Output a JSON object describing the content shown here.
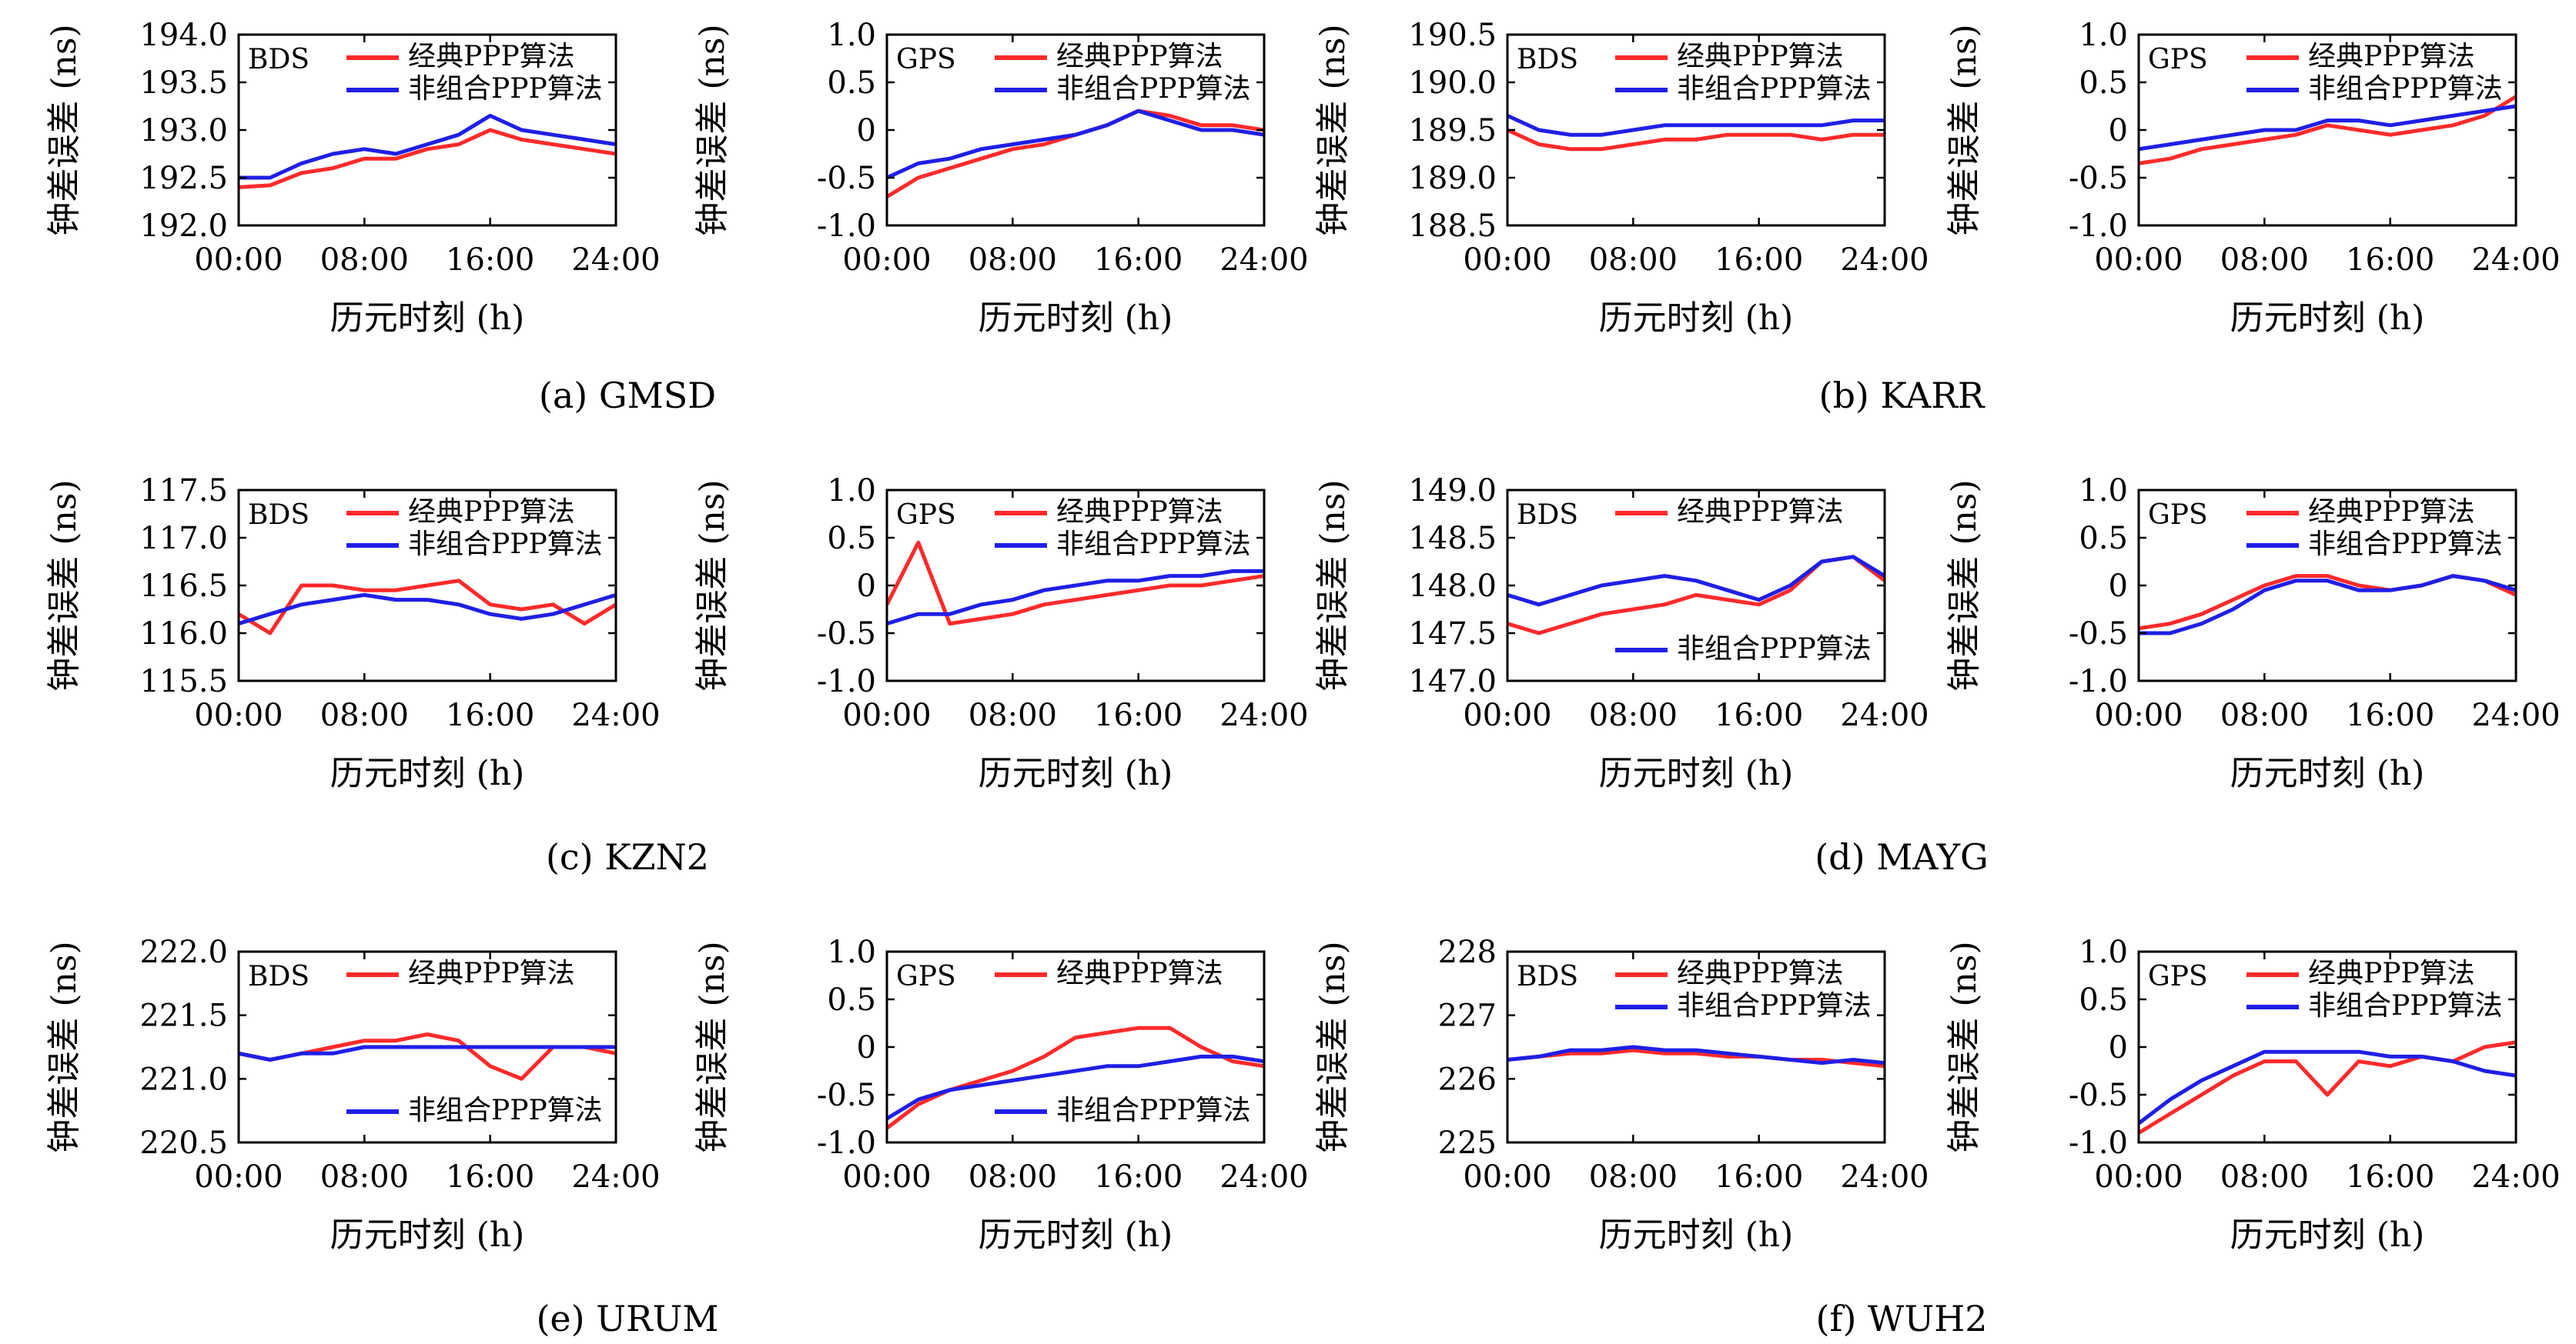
{
  "figure": {
    "time_axis_label": "历元时刻 (h)",
    "clock_axis_label": "钟差误差 (ns)",
    "legend_classic": "经典PPP算法",
    "legend_uncombined": "非组合PPP算法",
    "colors": {
      "classic": "#ff2a2a",
      "uncombined": "#1f1fe6"
    },
    "captions": [
      "(a) GMSD",
      "(b) KARR",
      "(c) KZN2",
      "(d) MAYG",
      "(e) URUM",
      "(f) WUH2"
    ]
  },
  "chart_data": [
    {
      "type": "line",
      "station": "GMSD",
      "system": "BDS",
      "x_ticks": [
        "00:00",
        "08:00",
        "16:00",
        "24:00"
      ],
      "ylim": [
        192.0,
        194.0
      ],
      "y_ticks": [
        "192.0",
        "192.5",
        "193.0",
        "193.5",
        "194.0"
      ],
      "legend_position": "top",
      "x_hours": [
        0,
        2,
        4,
        6,
        8,
        10,
        12,
        14,
        16,
        18,
        20,
        22,
        24
      ],
      "series": [
        {
          "name": "经典PPP算法",
          "values": [
            192.4,
            192.42,
            192.55,
            192.6,
            192.7,
            192.7,
            192.8,
            192.85,
            193.0,
            192.9,
            192.85,
            192.8,
            192.75
          ]
        },
        {
          "name": "非组合PPP算法",
          "values": [
            192.5,
            192.5,
            192.65,
            192.75,
            192.8,
            192.75,
            192.85,
            192.95,
            193.15,
            193.0,
            192.95,
            192.9,
            192.85
          ]
        }
      ]
    },
    {
      "type": "line",
      "station": "GMSD",
      "system": "GPS",
      "x_ticks": [
        "00:00",
        "08:00",
        "16:00",
        "24:00"
      ],
      "ylim": [
        -1.0,
        1.0
      ],
      "y_ticks": [
        "-1.0",
        "-0.5",
        "0",
        "0.5",
        "1.0"
      ],
      "legend_position": "top",
      "x_hours": [
        0,
        2,
        4,
        6,
        8,
        10,
        12,
        14,
        16,
        18,
        20,
        22,
        24
      ],
      "series": [
        {
          "name": "经典PPP算法",
          "values": [
            -0.7,
            -0.5,
            -0.4,
            -0.3,
            -0.2,
            -0.15,
            -0.05,
            0.05,
            0.2,
            0.15,
            0.05,
            0.05,
            0.0
          ]
        },
        {
          "name": "非组合PPP算法",
          "values": [
            -0.5,
            -0.35,
            -0.3,
            -0.2,
            -0.15,
            -0.1,
            -0.05,
            0.05,
            0.2,
            0.1,
            0.0,
            0.0,
            -0.05
          ]
        }
      ]
    },
    {
      "type": "line",
      "station": "KARR",
      "system": "BDS",
      "x_ticks": [
        "00:00",
        "08:00",
        "16:00",
        "24:00"
      ],
      "ylim": [
        188.5,
        190.5
      ],
      "y_ticks": [
        "188.5",
        "189.0",
        "189.5",
        "190.0",
        "190.5"
      ],
      "legend_position": "top",
      "x_hours": [
        0,
        2,
        4,
        6,
        8,
        10,
        12,
        14,
        16,
        18,
        20,
        22,
        24
      ],
      "series": [
        {
          "name": "经典PPP算法",
          "values": [
            189.5,
            189.35,
            189.3,
            189.3,
            189.35,
            189.4,
            189.4,
            189.45,
            189.45,
            189.45,
            189.4,
            189.45,
            189.45
          ]
        },
        {
          "name": "非组合PPP算法",
          "values": [
            189.65,
            189.5,
            189.45,
            189.45,
            189.5,
            189.55,
            189.55,
            189.55,
            189.55,
            189.55,
            189.55,
            189.6,
            189.6
          ]
        }
      ]
    },
    {
      "type": "line",
      "station": "KARR",
      "system": "GPS",
      "x_ticks": [
        "00:00",
        "08:00",
        "16:00",
        "24:00"
      ],
      "ylim": [
        -1.0,
        1.0
      ],
      "y_ticks": [
        "-1.0",
        "-0.5",
        "0",
        "0.5",
        "1.0"
      ],
      "legend_position": "top",
      "x_hours": [
        0,
        2,
        4,
        6,
        8,
        10,
        12,
        14,
        16,
        18,
        20,
        22,
        24
      ],
      "series": [
        {
          "name": "经典PPP算法",
          "values": [
            -0.35,
            -0.3,
            -0.2,
            -0.15,
            -0.1,
            -0.05,
            0.05,
            0.0,
            -0.05,
            0.0,
            0.05,
            0.15,
            0.35
          ]
        },
        {
          "name": "非组合PPP算法",
          "values": [
            -0.2,
            -0.15,
            -0.1,
            -0.05,
            0.0,
            0.0,
            0.1,
            0.1,
            0.05,
            0.1,
            0.15,
            0.2,
            0.25
          ]
        }
      ]
    },
    {
      "type": "line",
      "station": "KZN2",
      "system": "BDS",
      "x_ticks": [
        "00:00",
        "08:00",
        "16:00",
        "24:00"
      ],
      "ylim": [
        115.5,
        117.5
      ],
      "y_ticks": [
        "115.5",
        "116.0",
        "116.5",
        "117.0",
        "117.5"
      ],
      "legend_position": "top",
      "x_hours": [
        0,
        2,
        4,
        6,
        8,
        10,
        12,
        14,
        16,
        18,
        20,
        22,
        24
      ],
      "series": [
        {
          "name": "经典PPP算法",
          "values": [
            116.2,
            116.0,
            116.5,
            116.5,
            116.45,
            116.45,
            116.5,
            116.55,
            116.3,
            116.25,
            116.3,
            116.1,
            116.3
          ]
        },
        {
          "name": "非组合PPP算法",
          "values": [
            116.1,
            116.2,
            116.3,
            116.35,
            116.4,
            116.35,
            116.35,
            116.3,
            116.2,
            116.15,
            116.2,
            116.3,
            116.4
          ]
        }
      ]
    },
    {
      "type": "line",
      "station": "KZN2",
      "system": "GPS",
      "x_ticks": [
        "00:00",
        "08:00",
        "16:00",
        "24:00"
      ],
      "ylim": [
        -1.0,
        1.0
      ],
      "y_ticks": [
        "-1.0",
        "-0.5",
        "0",
        "0.5",
        "1.0"
      ],
      "legend_position": "top",
      "x_hours": [
        0,
        2,
        4,
        6,
        8,
        10,
        12,
        14,
        16,
        18,
        20,
        22,
        24
      ],
      "series": [
        {
          "name": "经典PPP算法",
          "values": [
            -0.2,
            0.45,
            -0.4,
            -0.35,
            -0.3,
            -0.2,
            -0.15,
            -0.1,
            -0.05,
            0.0,
            0.0,
            0.05,
            0.1
          ]
        },
        {
          "name": "非组合PPP算法",
          "values": [
            -0.4,
            -0.3,
            -0.3,
            -0.2,
            -0.15,
            -0.05,
            0.0,
            0.05,
            0.05,
            0.1,
            0.1,
            0.15,
            0.15
          ]
        }
      ]
    },
    {
      "type": "line",
      "station": "MAYG",
      "system": "BDS",
      "x_ticks": [
        "00:00",
        "08:00",
        "16:00",
        "24:00"
      ],
      "ylim": [
        147.0,
        149.0
      ],
      "y_ticks": [
        "147.0",
        "147.5",
        "148.0",
        "148.5",
        "149.0"
      ],
      "legend_position": "split",
      "x_hours": [
        0,
        2,
        4,
        6,
        8,
        10,
        12,
        14,
        16,
        18,
        20,
        22,
        24
      ],
      "series": [
        {
          "name": "经典PPP算法",
          "values": [
            147.6,
            147.5,
            147.6,
            147.7,
            147.75,
            147.8,
            147.9,
            147.85,
            147.8,
            147.95,
            148.25,
            148.3,
            148.05
          ]
        },
        {
          "name": "非组合PPP算法",
          "values": [
            147.9,
            147.8,
            147.9,
            148.0,
            148.05,
            148.1,
            148.05,
            147.95,
            147.85,
            148.0,
            148.25,
            148.3,
            148.1
          ]
        }
      ]
    },
    {
      "type": "line",
      "station": "MAYG",
      "system": "GPS",
      "x_ticks": [
        "00:00",
        "08:00",
        "16:00",
        "24:00"
      ],
      "ylim": [
        -1.0,
        1.0
      ],
      "y_ticks": [
        "-1.0",
        "-0.5",
        "0",
        "0.5",
        "1.0"
      ],
      "legend_position": "top",
      "x_hours": [
        0,
        2,
        4,
        6,
        8,
        10,
        12,
        14,
        16,
        18,
        20,
        22,
        24
      ],
      "series": [
        {
          "name": "经典PPP算法",
          "values": [
            -0.45,
            -0.4,
            -0.3,
            -0.15,
            0.0,
            0.1,
            0.1,
            0.0,
            -0.05,
            0.0,
            0.1,
            0.05,
            -0.1
          ]
        },
        {
          "name": "非组合PPP算法",
          "values": [
            -0.5,
            -0.5,
            -0.4,
            -0.25,
            -0.05,
            0.05,
            0.05,
            -0.05,
            -0.05,
            0.0,
            0.1,
            0.05,
            -0.05
          ]
        }
      ]
    },
    {
      "type": "line",
      "station": "URUM",
      "system": "BDS",
      "x_ticks": [
        "00:00",
        "08:00",
        "16:00",
        "24:00"
      ],
      "ylim": [
        220.5,
        222.0
      ],
      "y_ticks": [
        "220.5",
        "221.0",
        "221.5",
        "222.0"
      ],
      "legend_position": "split",
      "x_hours": [
        0,
        2,
        4,
        6,
        8,
        10,
        12,
        14,
        16,
        18,
        20,
        22,
        24
      ],
      "series": [
        {
          "name": "经典PPP算法",
          "values": [
            221.2,
            221.15,
            221.2,
            221.25,
            221.3,
            221.3,
            221.35,
            221.3,
            221.1,
            221.0,
            221.25,
            221.25,
            221.2
          ]
        },
        {
          "name": "非组合PPP算法",
          "values": [
            221.2,
            221.15,
            221.2,
            221.2,
            221.25,
            221.25,
            221.25,
            221.25,
            221.25,
            221.25,
            221.25,
            221.25,
            221.25
          ]
        }
      ]
    },
    {
      "type": "line",
      "station": "URUM",
      "system": "GPS",
      "x_ticks": [
        "00:00",
        "08:00",
        "16:00",
        "24:00"
      ],
      "ylim": [
        -1.0,
        1.0
      ],
      "y_ticks": [
        "-1.0",
        "-0.5",
        "0",
        "0.5",
        "1.0"
      ],
      "legend_position": "split",
      "x_hours": [
        0,
        2,
        4,
        6,
        8,
        10,
        12,
        14,
        16,
        18,
        20,
        22,
        24
      ],
      "series": [
        {
          "name": "经典PPP算法",
          "values": [
            -0.85,
            -0.6,
            -0.45,
            -0.35,
            -0.25,
            -0.1,
            0.1,
            0.15,
            0.2,
            0.2,
            0.0,
            -0.15,
            -0.2
          ]
        },
        {
          "name": "非组合PPP算法",
          "values": [
            -0.75,
            -0.55,
            -0.45,
            -0.4,
            -0.35,
            -0.3,
            -0.25,
            -0.2,
            -0.2,
            -0.15,
            -0.1,
            -0.1,
            -0.15
          ]
        }
      ]
    },
    {
      "type": "line",
      "station": "WUH2",
      "system": "BDS",
      "x_ticks": [
        "00:00",
        "08:00",
        "16:00",
        "24:00"
      ],
      "ylim": [
        225.0,
        228.0
      ],
      "y_ticks": [
        "225",
        "226",
        "227",
        "228"
      ],
      "legend_position": "top",
      "x_hours": [
        0,
        2,
        4,
        6,
        8,
        10,
        12,
        14,
        16,
        18,
        20,
        22,
        24
      ],
      "series": [
        {
          "name": "经典PPP算法",
          "values": [
            226.3,
            226.35,
            226.4,
            226.4,
            226.45,
            226.4,
            226.4,
            226.35,
            226.35,
            226.3,
            226.3,
            226.25,
            226.2
          ]
        },
        {
          "name": "非组合PPP算法",
          "values": [
            226.3,
            226.35,
            226.45,
            226.45,
            226.5,
            226.45,
            226.45,
            226.4,
            226.35,
            226.3,
            226.25,
            226.3,
            226.25
          ]
        }
      ]
    },
    {
      "type": "line",
      "station": "WUH2",
      "system": "GPS",
      "x_ticks": [
        "00:00",
        "08:00",
        "16:00",
        "24:00"
      ],
      "ylim": [
        -1.0,
        1.0
      ],
      "y_ticks": [
        "-1.0",
        "-0.5",
        "0",
        "0.5",
        "1.0"
      ],
      "legend_position": "top",
      "x_hours": [
        0,
        2,
        4,
        6,
        8,
        10,
        12,
        14,
        16,
        18,
        20,
        22,
        24
      ],
      "series": [
        {
          "name": "经典PPP算法",
          "values": [
            -0.9,
            -0.7,
            -0.5,
            -0.3,
            -0.15,
            -0.15,
            -0.5,
            -0.15,
            -0.2,
            -0.1,
            -0.15,
            0.0,
            0.05
          ]
        },
        {
          "name": "非组合PPP算法",
          "values": [
            -0.8,
            -0.55,
            -0.35,
            -0.2,
            -0.05,
            -0.05,
            -0.05,
            -0.05,
            -0.1,
            -0.1,
            -0.15,
            -0.25,
            -0.3
          ]
        }
      ]
    }
  ]
}
